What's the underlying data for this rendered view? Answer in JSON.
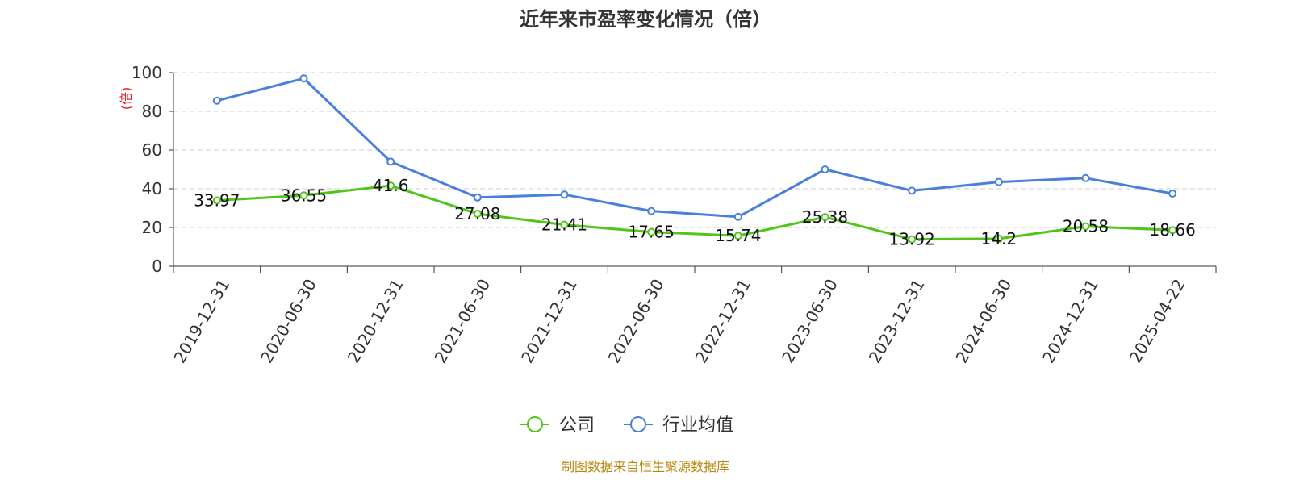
{
  "chart_data": {
    "type": "line",
    "title": "近年来市盈率变化情况（倍）",
    "ylabel": "(倍)",
    "xlabel": "",
    "ylim": [
      0,
      100
    ],
    "yticks": [
      0,
      20,
      40,
      60,
      80,
      100
    ],
    "grid": "horizontal-dashed",
    "legend_position": "bottom",
    "categories": [
      "2019-12-31",
      "2020-06-30",
      "2020-12-31",
      "2021-06-30",
      "2021-12-31",
      "2022-06-30",
      "2022-12-31",
      "2023-06-30",
      "2023-12-31",
      "2024-06-30",
      "2024-12-31",
      "2025-04-22"
    ],
    "series": [
      {
        "name": "公司",
        "color": "#52c41a",
        "values": [
          33.97,
          36.55,
          41.6,
          27.08,
          21.41,
          17.65,
          15.74,
          25.38,
          13.92,
          14.2,
          20.58,
          18.66
        ],
        "labels": [
          "33.97",
          "36.55",
          "41.6",
          "27.08",
          "21.41",
          "17.65",
          "15.74",
          "25.38",
          "13.92",
          "14.2",
          "20.58",
          "18.66"
        ]
      },
      {
        "name": "行业均值",
        "color": "#4a7fdc",
        "values": [
          85.5,
          97.0,
          54.0,
          35.5,
          37.0,
          28.5,
          25.5,
          50.0,
          39.0,
          43.5,
          45.5,
          37.5
        ]
      }
    ],
    "source": "制图数据来自恒生聚源数据库"
  }
}
